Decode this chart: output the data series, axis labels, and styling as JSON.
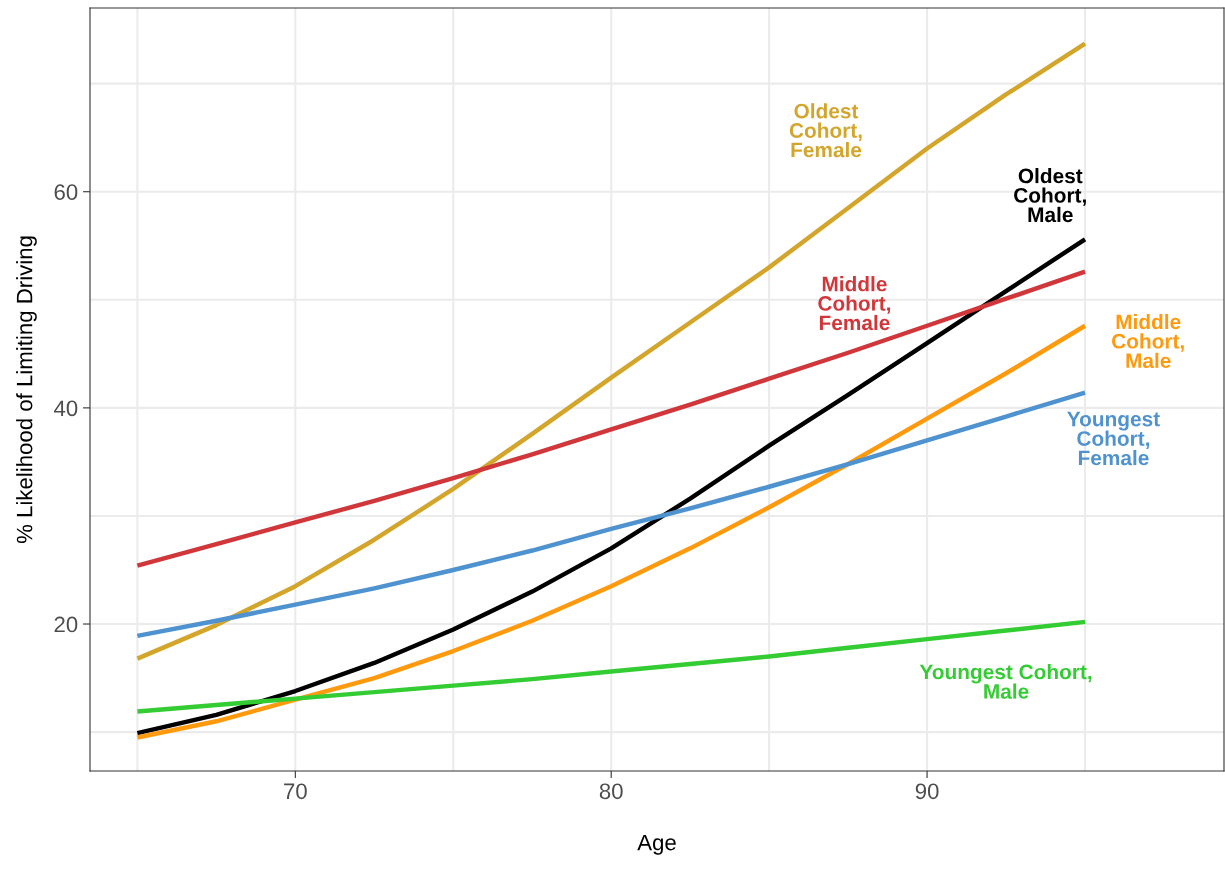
{
  "chart_data": {
    "type": "line",
    "xlabel": "Age",
    "ylabel": "% Likelihood of Limiting Driving",
    "xlim": [
      63.5,
      99.4
    ],
    "ylim": [
      6.4,
      77.0
    ],
    "xticks": [
      {
        "value": 65,
        "label": null
      },
      70,
      {
        "value": 75,
        "label": null
      },
      80,
      {
        "value": 85,
        "label": null
      },
      90,
      {
        "value": 95,
        "label": null
      }
    ],
    "yticks": [
      {
        "value": 10,
        "label": null
      },
      20,
      {
        "value": 30,
        "label": null
      },
      40,
      {
        "value": 50,
        "label": null
      },
      60,
      {
        "value": 70,
        "label": null
      }
    ],
    "grid": true,
    "legend": false,
    "marker": "none",
    "line_style": "solid",
    "x": [
      65,
      67.5,
      70,
      72.5,
      75,
      77.5,
      80,
      82.5,
      85,
      87.5,
      90,
      92.5,
      95
    ],
    "series": [
      {
        "name": "Oldest\nCohort,\nFemale",
        "color": "#d4a52b",
        "values": [
          16.8,
          19.9,
          23.5,
          27.8,
          32.5,
          37.6,
          42.8,
          47.9,
          53.0,
          58.5,
          64.0,
          69.0,
          73.7
        ]
      },
      {
        "name": "Oldest\nCohort,\nMale",
        "color": "#000000",
        "values": [
          9.9,
          11.6,
          13.8,
          16.4,
          19.5,
          23.0,
          27.0,
          31.6,
          36.5,
          41.2,
          46.0,
          50.8,
          55.6
        ]
      },
      {
        "name": "Middle\nCohort,\nFemale",
        "color": "#d1373a",
        "values": [
          25.4,
          27.4,
          29.4,
          31.4,
          33.5,
          35.7,
          38.0,
          40.3,
          42.7,
          45.1,
          47.6,
          50.1,
          52.6
        ]
      },
      {
        "name": "Middle\nCohort,\nMale",
        "color": "#ff9a0e",
        "values": [
          9.5,
          11.0,
          13.0,
          15.0,
          17.5,
          20.3,
          23.5,
          27.0,
          30.8,
          34.8,
          39.0,
          43.2,
          47.6
        ]
      },
      {
        "name": "Youngest\nCohort,\nFemale",
        "color": "#4e92cf",
        "values": [
          18.9,
          20.3,
          21.8,
          23.3,
          25.0,
          26.8,
          28.8,
          30.7,
          32.7,
          34.8,
          37.0,
          39.2,
          41.4
        ]
      },
      {
        "name": "Youngest Cohort,\nMale",
        "color": "#33cc33",
        "values": [
          11.9,
          12.5,
          13.1,
          13.7,
          14.3,
          14.9,
          15.6,
          16.3,
          17.0,
          17.8,
          18.6,
          19.4,
          20.2
        ]
      }
    ]
  }
}
